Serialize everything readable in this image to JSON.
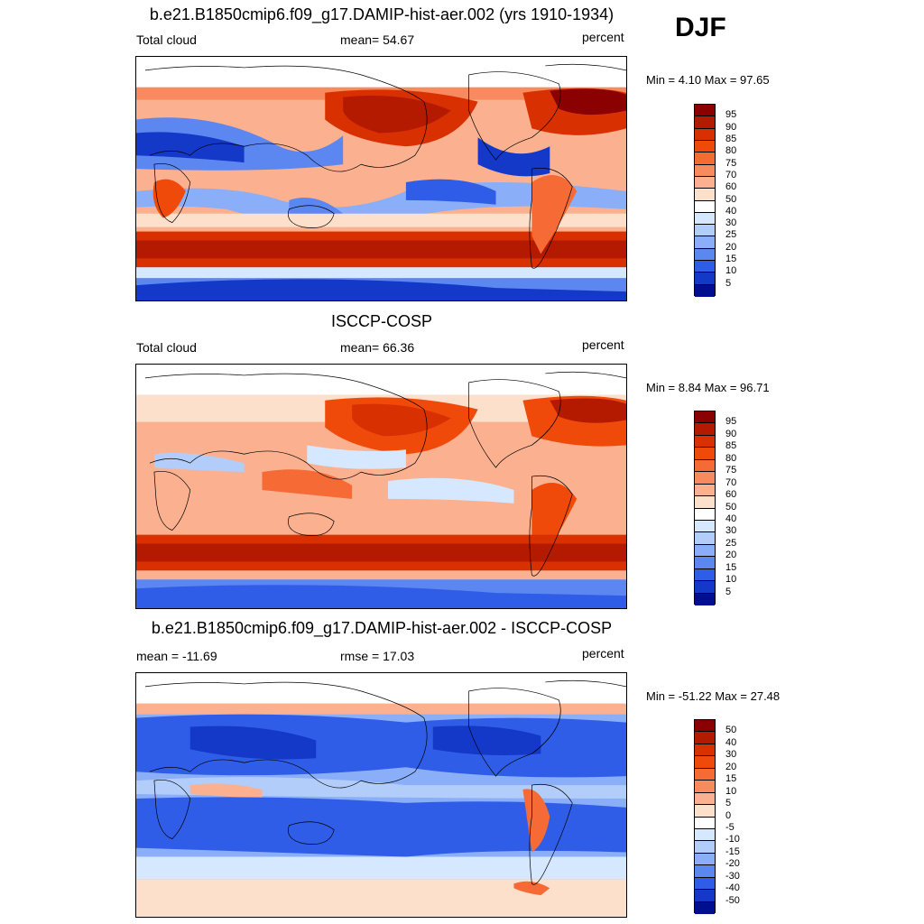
{
  "season": "DJF",
  "panels": [
    {
      "title": "b.e21.B1850cmip6.f09_g17.DAMIP-hist-aer.002 (yrs 1910-1934)",
      "left_label": "Total cloud",
      "center_label": "mean=  54.67",
      "right_label": "percent",
      "minmax": "Min =   4.10 Max =  97.65",
      "colorbar_labels": [
        "95",
        "90",
        "85",
        "80",
        "75",
        "70",
        "60",
        "50",
        "40",
        "30",
        "25",
        "20",
        "15",
        "10",
        "5"
      ]
    },
    {
      "title": "ISCCP-COSP",
      "left_label": "Total cloud",
      "center_label": "mean=  66.36",
      "right_label": "percent",
      "minmax": "Min =   8.84 Max =  96.71",
      "colorbar_labels": [
        "95",
        "90",
        "85",
        "80",
        "75",
        "70",
        "60",
        "50",
        "40",
        "30",
        "25",
        "20",
        "15",
        "10",
        "5"
      ]
    },
    {
      "title": "b.e21.B1850cmip6.f09_g17.DAMIP-hist-aer.002 - ISCCP-COSP",
      "left_label": "mean = -11.69",
      "center_label": "rmse =  17.03",
      "right_label": "percent",
      "minmax": "Min = -51.22 Max =  27.48",
      "colorbar_labels": [
        "50",
        "40",
        "30",
        "20",
        "15",
        "10",
        "5",
        "0",
        "-5",
        "-10",
        "-15",
        "-20",
        "-30",
        "-40",
        "-50"
      ]
    }
  ],
  "colors": {
    "colorbar_16": [
      "#8b0000",
      "#b31a00",
      "#d93000",
      "#f04a0a",
      "#f56a35",
      "#f88a5f",
      "#fbb08f",
      "#fde0cc",
      "#ffffff",
      "#d6e8ff",
      "#b3cdfb",
      "#8aaef7",
      "#5c86f0",
      "#2f5de8",
      "#1438c8",
      "#000f8f"
    ]
  }
}
